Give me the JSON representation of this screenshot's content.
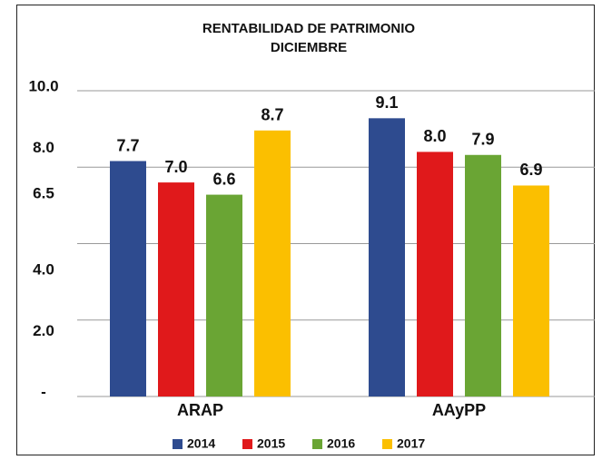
{
  "chart_data": {
    "type": "bar",
    "title": "RENTABILIDAD DE PATRIMONIO",
    "subtitle": "DICIEMBRE",
    "categories": [
      "ARAP",
      "AAyPP"
    ],
    "series": [
      {
        "name": "2014",
        "color": "#2e4b8f",
        "values": [
          7.7,
          9.1
        ],
        "value_labels": [
          "7.7",
          "9.1"
        ]
      },
      {
        "name": "2015",
        "color": "#e0191b",
        "values": [
          7.0,
          8.0
        ],
        "value_labels": [
          "7.0",
          "8.0"
        ]
      },
      {
        "name": "2016",
        "color": "#6aa534",
        "values": [
          6.6,
          7.9
        ],
        "value_labels": [
          "6.6",
          "7.9"
        ]
      },
      {
        "name": "2017",
        "color": "#fbbf00",
        "values": [
          8.7,
          6.9
        ],
        "value_labels": [
          "8.7",
          "6.9"
        ]
      }
    ],
    "ylim": [
      0,
      10
    ],
    "yticks": [
      {
        "value": 0,
        "label": "-"
      },
      {
        "value": 2,
        "label": "2.0"
      },
      {
        "value": 4,
        "label": "4.0"
      },
      {
        "value": 6.5,
        "label": "6.5"
      },
      {
        "value": 8,
        "label": "8.0"
      },
      {
        "value": 10,
        "label": "10.0"
      }
    ],
    "grid_lines": [
      0,
      2.5,
      5,
      7.5,
      10
    ],
    "grid": true,
    "legend": "bottom"
  }
}
